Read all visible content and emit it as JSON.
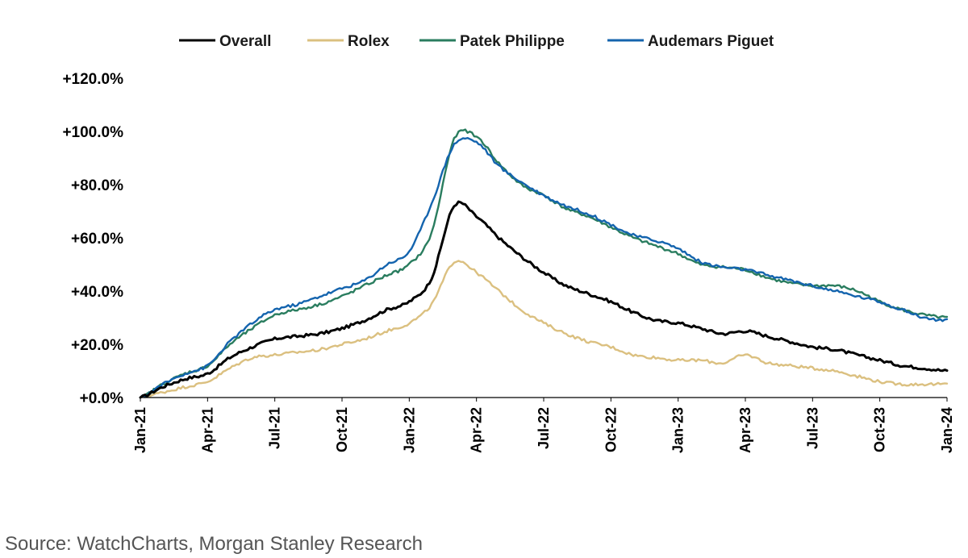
{
  "source_text": "Source: WatchCharts, Morgan Stanley Research",
  "chart_data": {
    "type": "line",
    "title": "",
    "xlabel": "",
    "ylabel": "",
    "ylim": [
      0,
      120
    ],
    "y_ticks": [
      0,
      20,
      40,
      60,
      80,
      100,
      120
    ],
    "y_tick_labels": [
      "+0.0%",
      "+20.0%",
      "+40.0%",
      "+60.0%",
      "+80.0%",
      "+100.0%",
      "+120.0%"
    ],
    "x_ticks": [
      "Jan-21",
      "Apr-21",
      "Jul-21",
      "Oct-21",
      "Jan-22",
      "Apr-22",
      "Jul-22",
      "Oct-22",
      "Jan-23",
      "Apr-23",
      "Jul-23",
      "Oct-23",
      "Jan-24"
    ],
    "grid": false,
    "legend_position": "top",
    "x": [
      "Jan-21",
      "Feb-21",
      "Mar-21",
      "Apr-21",
      "May-21",
      "Jun-21",
      "Jul-21",
      "Aug-21",
      "Sep-21",
      "Oct-21",
      "Nov-21",
      "Dec-21",
      "Jan-22",
      "Feb-22",
      "Mar-22",
      "Apr-22",
      "May-22",
      "Jun-22",
      "Jul-22",
      "Aug-22",
      "Sep-22",
      "Oct-22",
      "Nov-22",
      "Dec-22",
      "Jan-23",
      "Feb-23",
      "Mar-23",
      "Apr-23",
      "May-23",
      "Jun-23",
      "Jul-23",
      "Aug-23",
      "Sep-23",
      "Oct-23",
      "Nov-23",
      "Dec-23",
      "Jan-24"
    ],
    "series": [
      {
        "name": "Overall",
        "color": "#000000",
        "values": [
          0,
          4,
          7,
          9,
          15,
          19,
          22,
          23,
          24,
          26,
          29,
          33,
          36,
          45,
          72,
          68,
          60,
          53,
          47,
          42,
          39,
          36,
          32,
          29,
          28,
          26,
          24,
          25,
          23,
          21,
          19,
          18,
          16,
          14,
          12,
          11,
          10
        ]
      },
      {
        "name": "Rolex",
        "color": "#dbc080",
        "values": [
          0,
          2,
          4,
          6,
          11,
          15,
          16,
          17,
          18,
          20,
          22,
          25,
          28,
          35,
          51,
          47,
          40,
          33,
          28,
          24,
          21,
          19,
          16,
          15,
          14,
          14,
          13,
          16,
          13,
          12,
          11,
          10,
          8,
          6,
          5,
          5,
          5
        ]
      },
      {
        "name": "Patek Philippe",
        "color": "#2a7d5f",
        "values": [
          0,
          5,
          9,
          12,
          20,
          26,
          31,
          33,
          35,
          38,
          42,
          46,
          50,
          62,
          97,
          98,
          88,
          80,
          76,
          71,
          68,
          64,
          60,
          57,
          54,
          50,
          49,
          48,
          45,
          43,
          42,
          42,
          40,
          36,
          33,
          31,
          30
        ]
      },
      {
        "name": "Audemars Piguet",
        "color": "#1464ae",
        "values": [
          0,
          5,
          9,
          12,
          21,
          28,
          33,
          35,
          38,
          41,
          44,
          50,
          55,
          73,
          95,
          96,
          87,
          81,
          76,
          72,
          69,
          65,
          61,
          59,
          56,
          51,
          49,
          48,
          46,
          44,
          42,
          40,
          38,
          36,
          33,
          30,
          29
        ]
      }
    ]
  }
}
